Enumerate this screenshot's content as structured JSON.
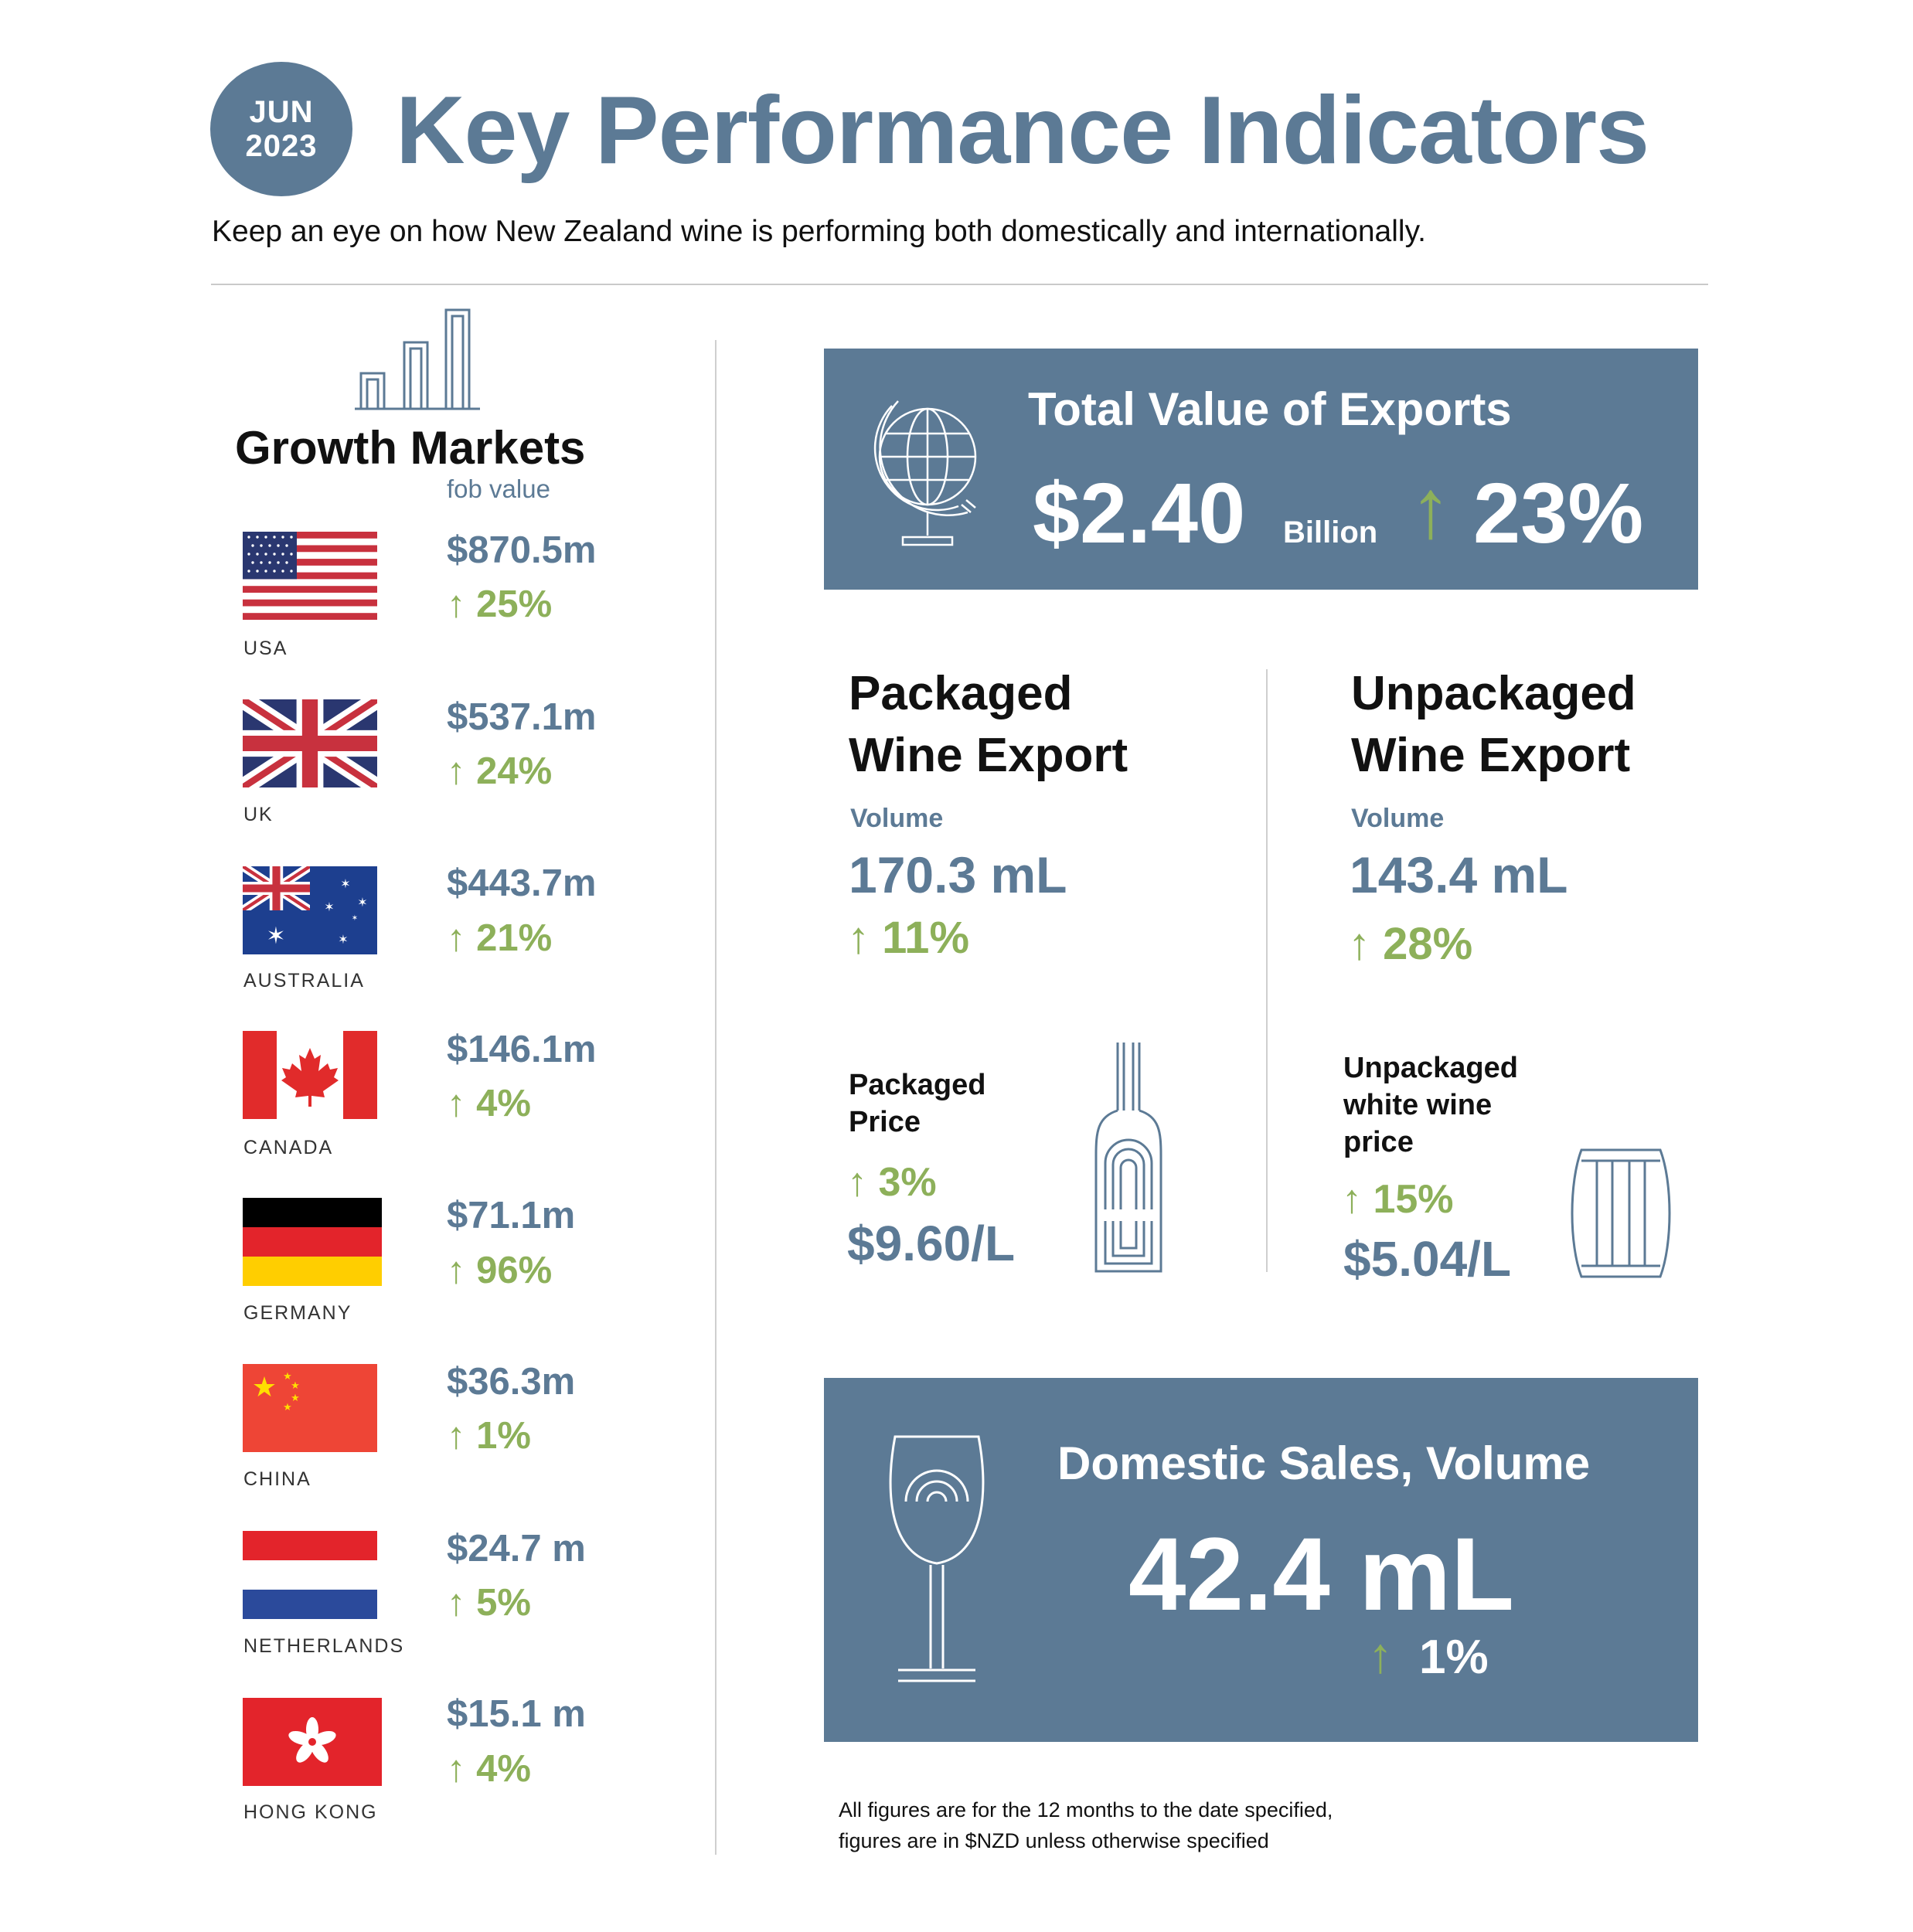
{
  "header": {
    "badge_month": "JUN",
    "badge_year": "2023",
    "title": "Key Performance Indicators",
    "subtitle": "Keep an eye on how New Zealand wine is performing both domestically and internationally."
  },
  "growth_markets": {
    "title": "Growth Markets",
    "subtitle": "fob value",
    "markets": [
      {
        "country": "USA",
        "value": "$870.5m",
        "change": "25%"
      },
      {
        "country": "UK",
        "value": "$537.1m",
        "change": "24%"
      },
      {
        "country": "AUSTRALIA",
        "value": "$443.7m",
        "change": "21%"
      },
      {
        "country": "CANADA",
        "value": "$146.1m",
        "change": "4%"
      },
      {
        "country": "GERMANY",
        "value": "$71.1m",
        "change": "96%"
      },
      {
        "country": "CHINA",
        "value": "$36.3m",
        "change": "1%"
      },
      {
        "country": "NETHERLANDS",
        "value": "$24.7 m",
        "change": "5%"
      },
      {
        "country": "HONG KONG",
        "value": "$15.1 m",
        "change": "4%"
      }
    ]
  },
  "exports": {
    "title": "Total Value of Exports",
    "value": "$2.40",
    "unit": "Billion",
    "change": "23%"
  },
  "packaged": {
    "title_line1": "Packaged",
    "title_line2": "Wine Export",
    "volume_label": "Volume",
    "volume": "170.3 mL",
    "volume_change": "11%",
    "price_label_line1": "Packaged",
    "price_label_line2": "Price",
    "price_change": "3%",
    "price": "$9.60/L"
  },
  "unpackaged": {
    "title_line1": "Unpackaged",
    "title_line2": "Wine Export",
    "volume_label": "Volume",
    "volume": "143.4 mL",
    "volume_change": "28%",
    "price_label_line1": "Unpackaged",
    "price_label_line2": "white wine",
    "price_label_line3": "price",
    "price_change": "15%",
    "price": "$5.04/L"
  },
  "domestic": {
    "title": "Domestic Sales, Volume",
    "value": "42.4 mL",
    "change": "1%"
  },
  "footnote": {
    "line1": "All figures are for the 12 months to the date specified,",
    "line2": "figures are in $NZD unless otherwise specified"
  },
  "colors": {
    "slate": "#5c7a95",
    "green": "#8db05a",
    "text": "#111111"
  },
  "icons": [
    "bar-chart-icon",
    "globe-icon",
    "up-arrow-icon",
    "wine-bottle-icon",
    "barrel-icon",
    "wine-glass-icon"
  ]
}
